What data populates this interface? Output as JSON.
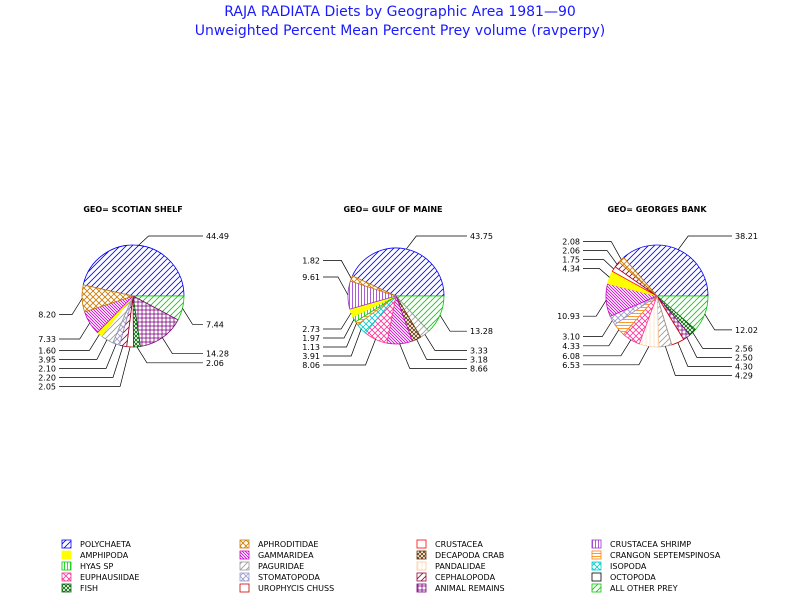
{
  "title": "RAJA RADIATA Diets by Geographic Area 1981—90",
  "subtitle": "Unweighted Percent Mean Percent Prey  volume (ravperpy)",
  "chart_data": {
    "type": "pie",
    "title": "RAJA RADIATA Diets by Geographic Area 1981—90",
    "subtitle": "Unweighted Percent Mean Percent Prey  volume (ravperpy)",
    "legend_position": "bottom",
    "categories": [
      {
        "name": "POLYCHAETA",
        "color": "#0000ff",
        "pattern": "diag-right"
      },
      {
        "name": "APHRODITIDAE",
        "color": "#cc7a00",
        "pattern": "cross-hatch"
      },
      {
        "name": "CRUSTACEA",
        "color": "#ff0000",
        "pattern": "open"
      },
      {
        "name": "CRUSTACEA SHRIMP",
        "color": "#9933cc",
        "pattern": "vertical"
      },
      {
        "name": "AMPHIPODA",
        "color": "#ffff00",
        "pattern": "solid"
      },
      {
        "name": "GAMMARIDEA",
        "color": "#cc00cc",
        "pattern": "diag-left-dense"
      },
      {
        "name": "DECAPODA CRAB",
        "color": "#663300",
        "pattern": "cross-dense"
      },
      {
        "name": "CRANGON SEPTEMSPINOSA",
        "color": "#ff8000",
        "pattern": "horizontal"
      },
      {
        "name": "HYAS SP",
        "color": "#00cc00",
        "pattern": "vertical"
      },
      {
        "name": "PAGURIDAE",
        "color": "#999999",
        "pattern": "diag-right"
      },
      {
        "name": "PANDALIDAE",
        "color": "#ffcc99",
        "pattern": "vertical-light"
      },
      {
        "name": "ISOPODA",
        "color": "#00cccc",
        "pattern": "cross-hatch"
      },
      {
        "name": "EUPHAUSIIDAE",
        "color": "#ff3399",
        "pattern": "cross-hatch"
      },
      {
        "name": "STOMATOPODA",
        "color": "#9999cc",
        "pattern": "cross-hatch"
      },
      {
        "name": "CEPHALOPODA",
        "color": "#990033",
        "pattern": "diag-right"
      },
      {
        "name": "OCTOPODA",
        "color": "#000000",
        "pattern": "open"
      },
      {
        "name": "FISH",
        "color": "#006600",
        "pattern": "cross-dense"
      },
      {
        "name": "UROPHYCIS CHUSS",
        "color": "#cc0000",
        "pattern": "open"
      },
      {
        "name": "ANIMAL REMAINS",
        "color": "#800080",
        "pattern": "grid"
      },
      {
        "name": "ALL OTHER PREY",
        "color": "#00cc00",
        "pattern": "diag-right"
      }
    ],
    "pies": [
      {
        "geo": "GEO= SCOTIAN SHELF",
        "slices": [
          {
            "category": "POLYCHAETA",
            "value": 44.49,
            "label": "44.49"
          },
          {
            "category": "ALL OTHER PREY",
            "value": 7.44,
            "label": "7.44"
          },
          {
            "category": "ANIMAL REMAINS",
            "value": 14.28,
            "label": "14.28"
          },
          {
            "category": "FISH",
            "value": 2.06,
            "label": "2.06"
          },
          {
            "category": "UROPHYCIS CHUSS",
            "value": 2.05,
            "label": "2.05"
          },
          {
            "category": "CEPHALOPODA",
            "value": 2.2,
            "label": "2.20"
          },
          {
            "category": "STOMATOPODA",
            "value": 2.1,
            "label": "2.10"
          },
          {
            "category": "PAGURIDAE",
            "value": 3.95,
            "label": "3.95"
          },
          {
            "category": "AMPHIPODA",
            "value": 1.6,
            "label": "1.60"
          },
          {
            "category": "GAMMARIDEA",
            "value": 7.33,
            "label": "7.33"
          },
          {
            "category": "APHRODITIDAE",
            "value": 8.2,
            "label": "8.20"
          }
        ]
      },
      {
        "geo": "GEO= GULF OF MAINE",
        "slices": [
          {
            "category": "POLYCHAETA",
            "value": 43.75,
            "label": "43.75"
          },
          {
            "category": "ALL OTHER PREY",
            "value": 13.28,
            "label": "13.28"
          },
          {
            "category": "PAGURIDAE",
            "value": 3.33,
            "label": "3.33"
          },
          {
            "category": "DECAPODA CRAB",
            "value": 3.18,
            "label": "3.18"
          },
          {
            "category": "GAMMARIDEA",
            "value": 8.66,
            "label": "8.66"
          },
          {
            "category": "EUPHAUSIIDAE",
            "value": 8.06,
            "label": "8.06"
          },
          {
            "category": "ISOPODA",
            "value": 3.91,
            "label": "3.91"
          },
          {
            "category": "CRANGON SEPTEMSPINOSA",
            "value": 1.13,
            "label": "1.13"
          },
          {
            "category": "HYAS SP",
            "value": 1.97,
            "label": "1.97"
          },
          {
            "category": "AMPHIPODA",
            "value": 2.73,
            "label": "2.73"
          },
          {
            "category": "CRUSTACEA SHRIMP",
            "value": 9.61,
            "label": "9.61"
          },
          {
            "category": "APHRODITIDAE",
            "value": 1.82,
            "label": "1.82"
          }
        ]
      },
      {
        "geo": "GEO= GEORGES BANK",
        "slices": [
          {
            "category": "POLYCHAETA",
            "value": 38.21,
            "label": "38.21"
          },
          {
            "category": "ALL OTHER PREY",
            "value": 12.02,
            "label": "12.02"
          },
          {
            "category": "FISH",
            "value": 2.56,
            "label": "2.56"
          },
          {
            "category": "ANIMAL REMAINS",
            "value": 2.5,
            "label": "2.50"
          },
          {
            "category": "UROPHYCIS CHUSS",
            "value": 4.3,
            "label": "4.30"
          },
          {
            "category": "PAGURIDAE",
            "value": 4.29,
            "label": "4.29"
          },
          {
            "category": "PANDALIDAE",
            "value": 6.53,
            "label": "6.53"
          },
          {
            "category": "EUPHAUSIIDAE",
            "value": 6.08,
            "label": "6.08"
          },
          {
            "category": "CRANGON SEPTEMSPINOSA",
            "value": 4.33,
            "label": "4.33"
          },
          {
            "category": "STOMATOPODA",
            "value": 3.1,
            "label": "3.10"
          },
          {
            "category": "GAMMARIDEA",
            "value": 10.93,
            "label": "10.93"
          },
          {
            "category": "AMPHIPODA",
            "value": 4.34,
            "label": "4.34"
          },
          {
            "category": "CRUSTACEA",
            "value": 1.75,
            "label": "1.75"
          },
          {
            "category": "CEPHALOPODA",
            "value": 2.06,
            "label": "2.06"
          },
          {
            "category": "APHRODITIDAE",
            "value": 2.08,
            "label": "2.08"
          }
        ]
      }
    ]
  }
}
